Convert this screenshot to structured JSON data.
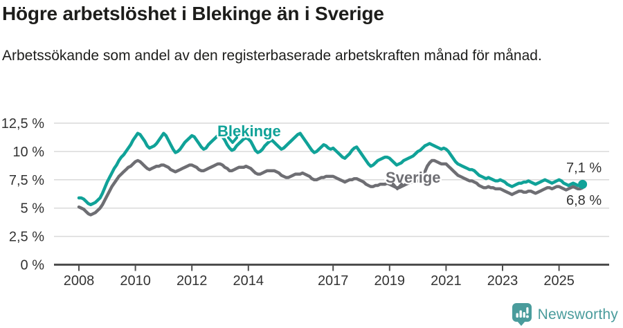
{
  "title": "Högre arbetslöshet i Blekinge än i Sverige",
  "subtitle": "Arbetssökande som andel av den registerbaserade arbetskraften månad för månad.",
  "branding": {
    "logo_text": "Newsworthy",
    "logo_icon": "newsworthy-speech-bubble-barchart-icon"
  },
  "colors": {
    "blekinge": "#10a298",
    "sverige": "#6e6e73",
    "axis": "#4d4d4d",
    "grid": "#d9d9d9",
    "text": "#333333",
    "title_text": "#1d1d1b",
    "brand": "#4a9c9c"
  },
  "chart_data": {
    "type": "line",
    "title": "Högre arbetslöshet i Blekinge än i Sverige",
    "subtitle": "Arbetssökande som andel av den registerbaserade arbetskraften månad för månad.",
    "frequency": "monthly",
    "x_range": "2008-01 till 2025-11",
    "ylim": [
      0,
      12.5
    ],
    "grid": "horizontal",
    "y_ticks": [
      {
        "value": 0,
        "label": "0 %"
      },
      {
        "value": 2.5,
        "label": "2,5 %"
      },
      {
        "value": 5,
        "label": "5 %"
      },
      {
        "value": 7.5,
        "label": "7,5 %"
      },
      {
        "value": 10,
        "label": "10 %"
      },
      {
        "value": 12.5,
        "label": "12,5 %"
      }
    ],
    "x_ticks": [
      2008,
      2010,
      2012,
      2014,
      2017,
      2019,
      2021,
      2023,
      2025
    ],
    "series": [
      {
        "name": "Blekinge",
        "end_label": "7,1 %",
        "end_value": 7.1,
        "end_dot": true,
        "values": [
          5.9,
          5.9,
          5.8,
          5.6,
          5.4,
          5.3,
          5.4,
          5.5,
          5.7,
          5.9,
          6.3,
          6.8,
          7.3,
          7.7,
          8.1,
          8.5,
          8.8,
          9.2,
          9.5,
          9.7,
          10.0,
          10.3,
          10.6,
          11.0,
          11.3,
          11.6,
          11.5,
          11.2,
          10.9,
          10.5,
          10.3,
          10.4,
          10.5,
          10.7,
          11.0,
          11.3,
          11.6,
          11.4,
          11.0,
          10.6,
          10.2,
          9.9,
          10.0,
          10.2,
          10.5,
          10.8,
          11.0,
          11.2,
          11.4,
          11.3,
          11.0,
          10.7,
          10.4,
          10.2,
          10.3,
          10.6,
          10.8,
          11.0,
          11.2,
          11.4,
          11.5,
          11.3,
          11.0,
          10.6,
          10.3,
          10.1,
          10.2,
          10.5,
          10.7,
          10.9,
          11.1,
          11.2,
          11.1,
          10.9,
          10.5,
          10.1,
          9.9,
          10.0,
          10.2,
          10.5,
          10.7,
          10.9,
          11.0,
          10.8,
          10.6,
          10.4,
          10.2,
          10.3,
          10.5,
          10.7,
          10.9,
          11.1,
          11.3,
          11.5,
          11.6,
          11.3,
          11.0,
          10.7,
          10.4,
          10.1,
          9.9,
          10.0,
          10.2,
          10.4,
          10.6,
          10.5,
          10.3,
          10.2,
          10.3,
          10.1,
          9.9,
          9.7,
          9.5,
          9.4,
          9.6,
          9.8,
          10.1,
          10.3,
          10.4,
          10.1,
          9.8,
          9.5,
          9.2,
          8.9,
          8.7,
          8.8,
          9.0,
          9.2,
          9.3,
          9.4,
          9.5,
          9.5,
          9.4,
          9.2,
          9.0,
          8.8,
          8.9,
          9.0,
          9.2,
          9.3,
          9.4,
          9.5,
          9.6,
          9.8,
          10.0,
          10.1,
          10.3,
          10.5,
          10.6,
          10.7,
          10.6,
          10.5,
          10.4,
          10.3,
          10.2,
          10.3,
          10.2,
          10.0,
          9.7,
          9.4,
          9.1,
          8.9,
          8.8,
          8.7,
          8.6,
          8.5,
          8.4,
          8.4,
          8.3,
          8.1,
          7.9,
          7.8,
          7.7,
          7.6,
          7.7,
          7.6,
          7.5,
          7.4,
          7.4,
          7.5,
          7.4,
          7.3,
          7.1,
          7.0,
          6.9,
          7.0,
          7.1,
          7.2,
          7.2,
          7.3,
          7.3,
          7.4,
          7.3,
          7.2,
          7.1,
          7.2,
          7.3,
          7.4,
          7.5,
          7.4,
          7.3,
          7.2,
          7.3,
          7.4,
          7.5,
          7.4,
          7.2,
          7.1,
          7.0,
          7.1,
          7.2,
          7.1,
          7.0,
          7.0,
          7.1
        ]
      },
      {
        "name": "Sverige",
        "end_label": "6,8 %",
        "end_value": 6.8,
        "end_dot": false,
        "values": [
          5.1,
          5.0,
          4.9,
          4.7,
          4.5,
          4.4,
          4.5,
          4.6,
          4.8,
          5.0,
          5.3,
          5.7,
          6.1,
          6.5,
          6.9,
          7.2,
          7.5,
          7.8,
          8.0,
          8.2,
          8.4,
          8.6,
          8.7,
          8.9,
          9.1,
          9.2,
          9.1,
          8.9,
          8.7,
          8.5,
          8.4,
          8.5,
          8.6,
          8.7,
          8.7,
          8.8,
          8.8,
          8.7,
          8.6,
          8.4,
          8.3,
          8.2,
          8.3,
          8.4,
          8.5,
          8.6,
          8.7,
          8.8,
          8.8,
          8.7,
          8.6,
          8.4,
          8.3,
          8.3,
          8.4,
          8.5,
          8.6,
          8.7,
          8.8,
          8.9,
          8.9,
          8.8,
          8.6,
          8.5,
          8.3,
          8.3,
          8.4,
          8.5,
          8.6,
          8.6,
          8.6,
          8.7,
          8.6,
          8.5,
          8.3,
          8.1,
          8.0,
          8.0,
          8.1,
          8.2,
          8.3,
          8.3,
          8.3,
          8.3,
          8.2,
          8.1,
          7.9,
          7.8,
          7.7,
          7.7,
          7.8,
          7.9,
          8.0,
          8.0,
          8.0,
          8.1,
          8.0,
          7.9,
          7.8,
          7.6,
          7.5,
          7.5,
          7.6,
          7.7,
          7.7,
          7.8,
          7.8,
          7.8,
          7.8,
          7.7,
          7.6,
          7.5,
          7.4,
          7.3,
          7.4,
          7.5,
          7.5,
          7.6,
          7.6,
          7.5,
          7.4,
          7.3,
          7.1,
          7.0,
          6.9,
          6.9,
          7.0,
          7.0,
          7.1,
          7.1,
          7.1,
          7.2,
          7.1,
          7.0,
          6.9,
          6.8,
          6.8,
          6.9,
          7.0,
          7.1,
          7.2,
          7.3,
          7.3,
          7.4,
          7.4,
          7.4,
          7.6,
          8.2,
          8.7,
          9.0,
          9.2,
          9.2,
          9.1,
          9.0,
          8.9,
          8.9,
          8.9,
          8.7,
          8.5,
          8.3,
          8.1,
          7.9,
          7.8,
          7.7,
          7.6,
          7.5,
          7.4,
          7.4,
          7.3,
          7.2,
          7.0,
          6.9,
          6.8,
          6.8,
          6.9,
          6.8,
          6.8,
          6.7,
          6.7,
          6.7,
          6.6,
          6.5,
          6.4,
          6.3,
          6.2,
          6.3,
          6.4,
          6.5,
          6.5,
          6.4,
          6.4,
          6.5,
          6.5,
          6.4,
          6.3,
          6.4,
          6.5,
          6.6,
          6.7,
          6.8,
          6.8,
          6.7,
          6.8,
          6.9,
          6.9,
          6.8,
          6.7,
          6.6,
          6.7,
          6.8,
          6.9,
          6.8,
          6.7,
          6.7,
          6.8
        ]
      }
    ]
  }
}
